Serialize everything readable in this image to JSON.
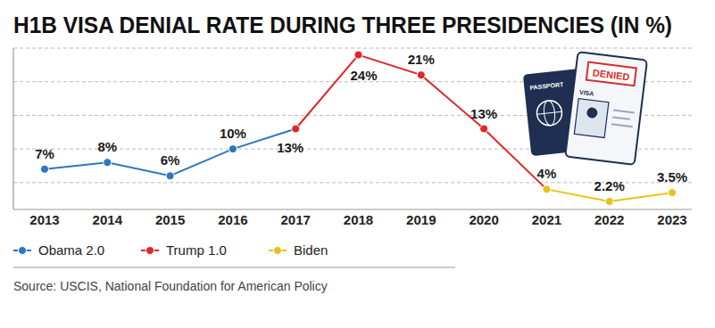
{
  "chart_data": {
    "type": "line",
    "title": "H1B VISA DENIAL RATE DURING THREE PRESIDENCIES (IN %)",
    "categories": [
      "2013",
      "2014",
      "2015",
      "2016",
      "2017",
      "2018",
      "2019",
      "2020",
      "2021",
      "2022",
      "2023"
    ],
    "series": [
      {
        "name": "Obama 2.0",
        "color": "#2a78bd",
        "values": [
          7,
          8,
          6,
          10,
          13,
          null,
          null,
          null,
          null,
          null,
          null
        ],
        "value_labels": [
          "7%",
          "8%",
          "6%",
          "10%",
          null,
          null,
          null,
          null,
          null,
          null,
          null
        ]
      },
      {
        "name": "Trump 1.0",
        "color": "#e0262a",
        "values": [
          null,
          null,
          null,
          null,
          13,
          24,
          21,
          13,
          4,
          null,
          null
        ],
        "value_labels": [
          null,
          null,
          null,
          null,
          "13%",
          "24%",
          "21%",
          "13%",
          null,
          null,
          null
        ]
      },
      {
        "name": "Biden",
        "color": "#e8c21a",
        "values": [
          null,
          null,
          null,
          null,
          null,
          null,
          null,
          null,
          4,
          2.2,
          3.5
        ],
        "value_labels": [
          null,
          null,
          null,
          null,
          null,
          null,
          null,
          null,
          "4%",
          "2.2%",
          "3.5%"
        ]
      }
    ],
    "ylim": [
      1,
      25
    ],
    "yticks": [
      5,
      10,
      15,
      20,
      25
    ],
    "grid": true,
    "tick_labels": "x",
    "data_labels": true,
    "marker": "circle",
    "legend": "bottom",
    "source": "Source: USCIS, National Foundation for American Policy",
    "annotations": [
      "PASSPORT",
      "VISA",
      "DENIED"
    ]
  }
}
